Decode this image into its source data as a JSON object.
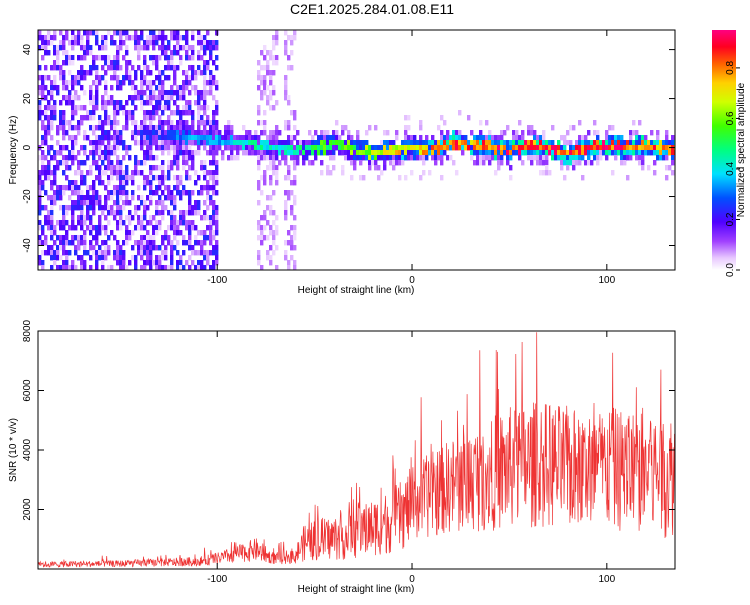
{
  "title": "C2E1.2025.284.01.08.E11",
  "chart_data": [
    {
      "type": "heatmap",
      "xlabel": "Height of straight line (km)",
      "ylabel": "Frequency (Hz)",
      "xlim": [
        -192,
        135
      ],
      "ylim": [
        -50,
        48
      ],
      "xticks": [
        -100,
        0,
        100
      ],
      "yticks": [
        -40,
        -20,
        0,
        20,
        40
      ],
      "xtick_labels": [
        "-100",
        "0",
        "100"
      ],
      "ytick_labels": [
        "-40",
        "-20",
        "0",
        "20",
        "40"
      ],
      "colorbar": {
        "label": "Normalized spectral amplitude",
        "range": [
          0,
          0.95
        ],
        "ticks": [
          0,
          0.2,
          0.4,
          0.6,
          0.8
        ],
        "tick_labels": [
          "0.0",
          "0.2",
          "0.4",
          "0.6",
          "0.8"
        ]
      },
      "ridge": {
        "description": "Dominant spectral ridge near 0-5 Hz",
        "x": [
          -125,
          -110,
          -100,
          -90,
          -80,
          -70,
          -60,
          -50,
          -40,
          -30,
          -20,
          -10,
          0,
          10,
          20,
          30,
          40,
          50,
          60,
          70,
          80,
          90,
          100,
          110,
          120,
          130
        ],
        "freq": [
          6,
          5,
          4,
          3,
          2,
          1,
          0,
          1,
          2,
          0,
          -1,
          0,
          1,
          0,
          3,
          2,
          1,
          0,
          2,
          1,
          -2,
          1,
          2,
          1,
          2,
          0
        ],
        "amplitude": [
          0.3,
          0.35,
          0.35,
          0.4,
          0.45,
          0.4,
          0.45,
          0.55,
          0.55,
          0.6,
          0.65,
          0.7,
          0.75,
          0.8,
          0.85,
          0.8,
          0.85,
          0.9,
          0.85,
          0.9,
          0.85,
          0.9,
          0.9,
          0.85,
          0.85,
          0.8
        ]
      },
      "noise_region_x": [
        -192,
        -100
      ],
      "noise_bands_x": [
        [
          -80,
          -70
        ],
        [
          -67,
          -60
        ]
      ]
    },
    {
      "type": "line",
      "xlabel": "Height of straight line (km)",
      "ylabel": "SNR (10 * v/v)",
      "xlim": [
        -192,
        135
      ],
      "ylim": [
        0,
        8000
      ],
      "xticks": [
        -100,
        0,
        100
      ],
      "yticks": [
        2000,
        4000,
        6000,
        8000
      ],
      "xtick_labels": [
        "-100",
        "0",
        "100"
      ],
      "ytick_labels": [
        "2000",
        "4000",
        "6000",
        "8000"
      ],
      "color": "#ee3333",
      "envelope": {
        "x": [
          -192,
          -150,
          -110,
          -100,
          -90,
          -80,
          -75,
          -70,
          -60,
          -55,
          -45,
          -35,
          -25,
          -15,
          -5,
          0,
          10,
          20,
          30,
          40,
          50,
          60,
          70,
          80,
          90,
          100,
          110,
          120,
          130,
          135
        ],
        "base": [
          150,
          180,
          250,
          350,
          500,
          650,
          450,
          350,
          450,
          900,
          1000,
          1100,
          1300,
          1500,
          1800,
          2200,
          2500,
          2800,
          3000,
          3200,
          3400,
          3500,
          3500,
          3400,
          3300,
          3400,
          3300,
          3300,
          3200,
          3200
        ],
        "spread": [
          120,
          140,
          200,
          250,
          350,
          500,
          300,
          250,
          350,
          800,
          900,
          1000,
          1100,
          1300,
          1500,
          1600,
          1800,
          2000,
          2200,
          2400,
          2600,
          2700,
          2700,
          2600,
          2500,
          2600,
          2600,
          2800,
          2700,
          2600
        ]
      }
    }
  ]
}
